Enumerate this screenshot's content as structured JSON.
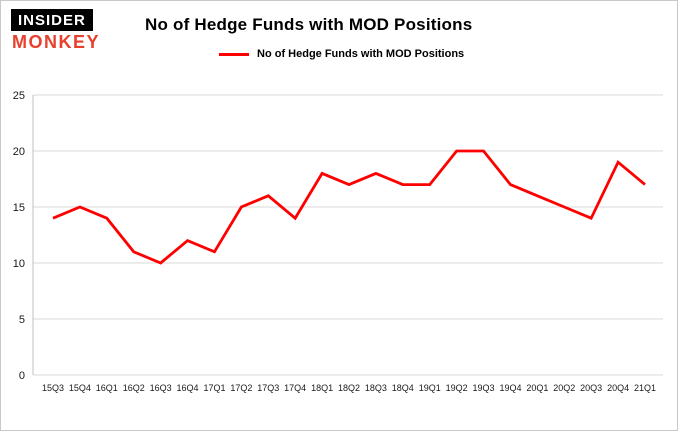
{
  "brand": {
    "line1": "INSIDER",
    "line2": "MONKEY",
    "black": "#000000",
    "red": "#e8402d"
  },
  "title": "No of Hedge Funds with MOD Positions",
  "legend": {
    "label": "No of Hedge Funds with MOD Positions",
    "color": "#ff0000"
  },
  "chart_data": {
    "type": "line",
    "title": "No of Hedge Funds with MOD Positions",
    "categories": [
      "15Q3",
      "15Q4",
      "16Q1",
      "16Q2",
      "16Q3",
      "16Q4",
      "17Q1",
      "17Q2",
      "17Q3",
      "17Q4",
      "18Q1",
      "18Q2",
      "18Q3",
      "18Q4",
      "19Q1",
      "19Q2",
      "19Q3",
      "19Q4",
      "20Q1",
      "20Q2",
      "20Q3",
      "20Q4",
      "21Q1"
    ],
    "series": [
      {
        "name": "No of Hedge Funds with MOD Positions",
        "color": "#ff0000",
        "values": [
          14,
          15,
          14,
          11,
          10,
          12,
          11,
          15,
          16,
          14,
          18,
          17,
          18,
          17,
          17,
          20,
          20,
          17,
          16,
          15,
          14,
          19,
          17
        ]
      }
    ],
    "xlabel": "",
    "ylabel": "",
    "ylim": [
      0,
      25
    ],
    "yticks": [
      0,
      5,
      10,
      15,
      20,
      25
    ],
    "grid": true,
    "grid_color": "#d9d9d9",
    "axis_color": "#c0c0c0",
    "tick_label_color": "#1a1a1a",
    "legend_position": "top"
  }
}
